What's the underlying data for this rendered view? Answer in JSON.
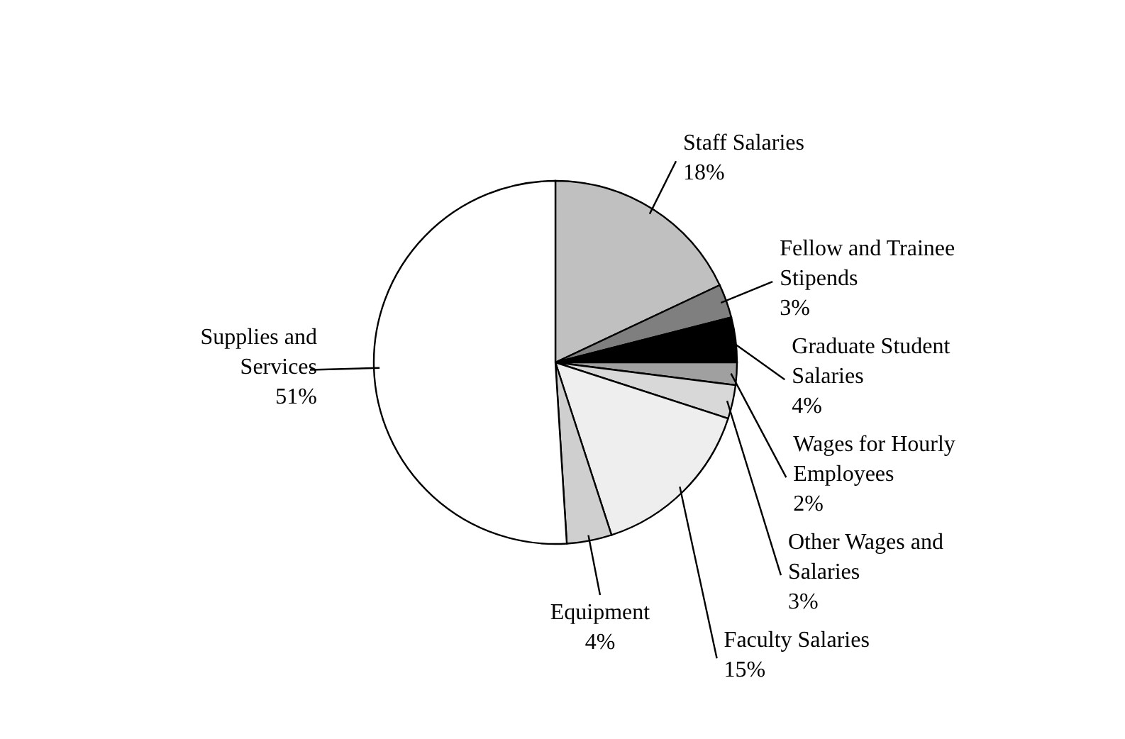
{
  "chart_data": {
    "type": "pie",
    "categories": [
      "Staff Salaries",
      "Fellow and Trainee Stipends",
      "Graduate Student Salaries",
      "Wages for Hourly Employees",
      "Other Wages and Salaries",
      "Faculty Salaries",
      "Equipment",
      "Supplies and Services"
    ],
    "values": [
      18,
      3,
      4,
      2,
      3,
      15,
      4,
      51
    ],
    "value_labels": [
      "18%",
      "3%",
      "4%",
      "2%",
      "3%",
      "15%",
      "4%",
      "51%"
    ],
    "colors": [
      "#c0c0c0",
      "#7f7f7f",
      "#000000",
      "#a0a0a0",
      "#d8d8d8",
      "#eeeeee",
      "#cfcfcf",
      "#ffffff"
    ],
    "legend": false
  }
}
